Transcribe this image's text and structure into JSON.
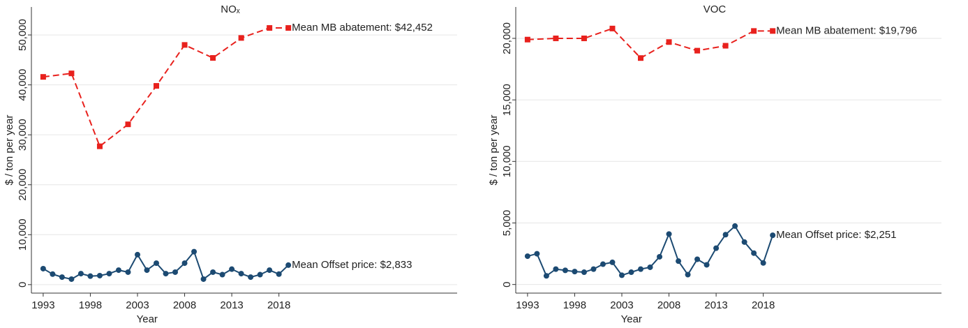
{
  "chart_data": [
    {
      "type": "line",
      "title": "NOₓ",
      "xlabel": "Year",
      "ylabel": "$ / ton per year",
      "xlim": [
        1991.75,
        2036.9
      ],
      "xticks": [
        1993,
        1998,
        2003,
        2008,
        2013,
        2018
      ],
      "ylim": [
        -1700,
        55600
      ],
      "yticks": [
        0,
        {
          "value": 10000,
          "label": "10,000"
        },
        {
          "value": 20000,
          "label": "20,000"
        },
        {
          "value": 30000,
          "label": "30,000"
        },
        {
          "value": 40000,
          "label": "40,000"
        },
        {
          "value": 50000,
          "label": "50,000"
        }
      ],
      "grid": true,
      "series": [
        {
          "label": "Mean MB abatement: $42,452",
          "color": "#e8211d",
          "dash": true,
          "marker": "square",
          "x": [
            1993,
            1996,
            1999,
            2002,
            2005,
            2008,
            2011,
            2014,
            2017,
            2019
          ],
          "values": [
            41600,
            42300,
            27700,
            32100,
            39800,
            48000,
            45400,
            49400,
            51400,
            51400
          ]
        },
        {
          "label": "Mean Offset price: $2,833",
          "color": "#1c4a72",
          "dash": false,
          "marker": "circle",
          "x": [
            1993,
            1994,
            1995,
            1996,
            1997,
            1998,
            1999,
            2000,
            2001,
            2002,
            2003,
            2004,
            2005,
            2006,
            2007,
            2008,
            2009,
            2010,
            2011,
            2012,
            2013,
            2014,
            2015,
            2016,
            2017,
            2018,
            2019
          ],
          "values": [
            3200,
            2100,
            1500,
            1100,
            2200,
            1700,
            1800,
            2200,
            2900,
            2500,
            6000,
            2900,
            4300,
            2200,
            2500,
            4300,
            6600,
            1100,
            2500,
            2000,
            3100,
            2200,
            1500,
            2000,
            2900,
            2100,
            3900
          ]
        }
      ]
    },
    {
      "type": "line",
      "title": "VOC",
      "xlabel": "Year",
      "ylabel": "$ / ton per year",
      "xlim": [
        1991.75,
        2036.9
      ],
      "xticks": [
        1993,
        1998,
        2003,
        2008,
        2013,
        2018
      ],
      "ylim": [
        -700,
        22550
      ],
      "yticks": [
        0,
        {
          "value": 5000,
          "label": "5,000"
        },
        {
          "value": 10000,
          "label": "10,000"
        },
        {
          "value": 15000,
          "label": "15,000"
        },
        {
          "value": 20000,
          "label": "20,000"
        }
      ],
      "grid": true,
      "series": [
        {
          "label": "Mean MB abatement: $19,796",
          "color": "#e8211d",
          "dash": true,
          "marker": "square",
          "x": [
            1993,
            1996,
            1999,
            2002,
            2005,
            2008,
            2011,
            2014,
            2017,
            2019
          ],
          "values": [
            19900,
            20000,
            20000,
            20800,
            18400,
            19700,
            19000,
            19400,
            20600,
            20600
          ]
        },
        {
          "label": "Mean Offset price: $2,251",
          "color": "#1c4a72",
          "dash": false,
          "marker": "circle",
          "x": [
            1993,
            1994,
            1995,
            1996,
            1997,
            1998,
            1999,
            2000,
            2001,
            2002,
            2003,
            2004,
            2005,
            2006,
            2007,
            2008,
            2009,
            2010,
            2011,
            2012,
            2013,
            2014,
            2015,
            2016,
            2017,
            2018,
            2019
          ],
          "values": [
            2300,
            2500,
            700,
            1250,
            1150,
            1050,
            1000,
            1250,
            1650,
            1800,
            750,
            1000,
            1250,
            1400,
            2250,
            4100,
            1900,
            800,
            2050,
            1600,
            2950,
            4050,
            4750,
            3450,
            2550,
            1750,
            4000
          ]
        }
      ]
    }
  ]
}
